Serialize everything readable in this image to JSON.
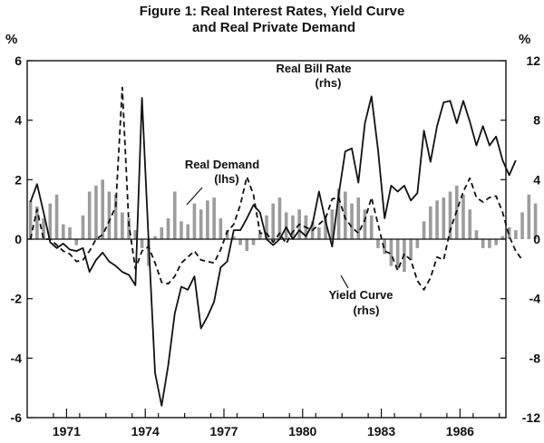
{
  "chart_data": {
    "type": "bar+line",
    "title": "Figure 1: Real Interest Rates, Yield Curve",
    "subtitle": "and Real Private Demand",
    "left_axis": {
      "unit": "%",
      "min": -6,
      "max": 6,
      "ticks": [
        -6,
        -4,
        -2,
        0,
        2,
        4,
        6
      ],
      "labels": [
        "-6",
        "-4",
        "-2",
        "0",
        "2",
        "4",
        "6"
      ]
    },
    "right_axis": {
      "unit": "%",
      "min": -12,
      "max": 12,
      "ticks": [
        -12,
        -8,
        -4,
        0,
        4,
        8,
        12
      ],
      "labels": [
        "-12",
        "-8",
        "-4",
        "0",
        "4",
        "8",
        "12"
      ]
    },
    "x_axis": {
      "start": 1970.0,
      "end": 1988.25,
      "tick_years": [
        1971,
        1974,
        1977,
        1980,
        1983,
        1986
      ],
      "labels": [
        "1971",
        "1974",
        "1977",
        "1980",
        "1983",
        "1986"
      ]
    },
    "quarter_start": 1970.125,
    "quarter_step": 0.25,
    "series": [
      {
        "name": "Real Demand",
        "axis": "left",
        "style": "bar",
        "label": "Real Demand",
        "sublabel": "(lhs)",
        "values": [
          1.3,
          1.1,
          0.7,
          1.2,
          1.5,
          0.5,
          0.4,
          -0.2,
          0.8,
          1.6,
          1.8,
          2.0,
          1.6,
          1.5,
          0.9,
          0.7,
          0.3,
          -0.3,
          -0.9,
          0.1,
          0.4,
          0.7,
          1.6,
          0.6,
          0.5,
          1.2,
          1.0,
          1.3,
          1.4,
          0.7,
          0.3,
          0.1,
          -0.2,
          -0.4,
          -0.2,
          0.2,
          0.8,
          1.2,
          1.4,
          0.9,
          0.8,
          1.0,
          0.8,
          0.6,
          0.4,
          0.7,
          1.0,
          1.7,
          1.6,
          1.2,
          1.4,
          1.0,
          0.8,
          -0.3,
          -0.5,
          -0.9,
          -1.0,
          -1.1,
          -0.7,
          -0.3,
          0.6,
          1.1,
          1.3,
          1.4,
          1.6,
          1.8,
          1.5,
          1.0,
          0.3,
          -0.3,
          -0.3,
          -0.2,
          0.1,
          0.4,
          0.3,
          0.9,
          1.5,
          1.2
        ]
      },
      {
        "name": "Real Bill Rate",
        "axis": "right",
        "style": "solid",
        "label": "Real Bill Rate",
        "sublabel": "(rhs)",
        "values": [
          2.5,
          3.7,
          1.8,
          -0.2,
          -0.6,
          -0.3,
          -0.7,
          -0.8,
          -0.6,
          -2.2,
          -1.4,
          -0.9,
          -1.5,
          -1.8,
          -2.2,
          -2.4,
          -3.1,
          9.5,
          0.0,
          -9.0,
          -11.2,
          -8.5,
          -5.0,
          -3.2,
          -3.4,
          -2.5,
          -6.0,
          -5.2,
          -4.2,
          -1.9,
          -1.5,
          0.6,
          0.6,
          1.4,
          2.3,
          1.8,
          0.0,
          -0.4,
          0.0,
          0.8,
          0.0,
          0.6,
          0.2,
          1.0,
          3.2,
          1.2,
          -0.5,
          3.0,
          5.9,
          6.1,
          3.8,
          7.8,
          9.6,
          6.0,
          1.4,
          3.6,
          3.2,
          3.6,
          2.6,
          3.1,
          7.3,
          5.2,
          7.6,
          9.2,
          9.3,
          7.8,
          9.3,
          7.9,
          6.3,
          7.6,
          6.3,
          6.9,
          5.3,
          4.3,
          5.3
        ]
      },
      {
        "name": "Yield Curve",
        "axis": "right",
        "style": "dashed",
        "label": "Yield Curve",
        "sublabel": "(rhs)",
        "values": [
          0.0,
          2.0,
          0.0,
          0.0,
          -0.4,
          -0.8,
          -1.0,
          -1.5,
          -1.4,
          -0.8,
          0.0,
          0.3,
          1.2,
          2.2,
          10.2,
          1.0,
          -2.0,
          -0.8,
          -0.5,
          -1.6,
          -2.9,
          -3.0,
          -2.5,
          -1.6,
          -1.2,
          -0.8,
          -1.4,
          -1.5,
          -1.6,
          -0.7,
          0.5,
          1.0,
          2.3,
          4.2,
          3.0,
          0.4,
          0.4,
          -0.2,
          0.4,
          -0.3,
          0.5,
          1.0,
          0.8,
          0.6,
          1.0,
          1.4,
          2.7,
          2.8,
          1.4,
          0.8,
          0.4,
          1.3,
          2.8,
          1.0,
          -0.8,
          -1.0,
          -2.1,
          -1.0,
          -1.4,
          -2.8,
          -3.4,
          -2.6,
          -1.2,
          -1.4,
          0.6,
          1.9,
          3.2,
          4.1,
          2.8,
          2.5,
          2.8,
          2.9,
          1.8,
          0.2,
          -0.8,
          -1.4
        ]
      }
    ]
  }
}
